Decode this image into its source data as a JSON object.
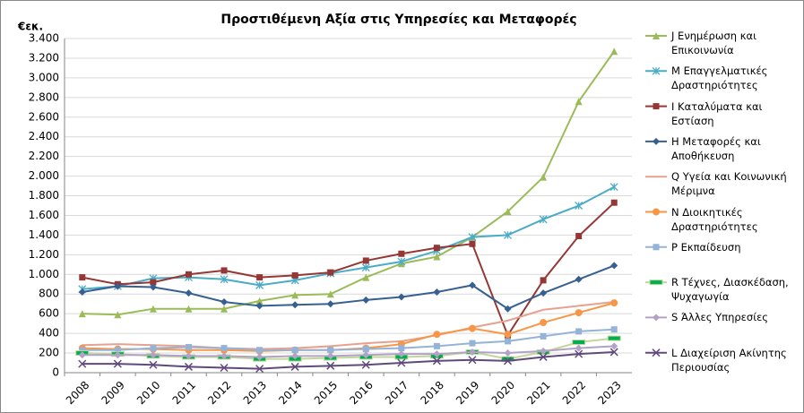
{
  "chart_data": {
    "type": "line",
    "title": "Προστιθέμενη Αξία στις Υπηρεσίες και Μεταφορές",
    "ylabel": "€εκ.",
    "categories": [
      "2008",
      "2009",
      "2010",
      "2011",
      "2012",
      "2013",
      "2014",
      "2015",
      "2016",
      "2017",
      "2018",
      "2019",
      "2020",
      "2021",
      "2022",
      "2023"
    ],
    "ylim": [
      0,
      3400
    ],
    "yticks": [
      0,
      200,
      400,
      600,
      800,
      {
        "value": 1000,
        "label": "1.000"
      },
      {
        "value": 1200,
        "label": "1.200"
      },
      {
        "value": 1400,
        "label": "1.400"
      },
      {
        "value": 1600,
        "label": "1.600"
      },
      {
        "value": 1800,
        "label": "1.800"
      },
      {
        "value": 2000,
        "label": "2.000"
      },
      {
        "value": 2200,
        "label": "2.200"
      },
      {
        "value": 2400,
        "label": "2.400"
      },
      {
        "value": 2600,
        "label": "2.600"
      },
      {
        "value": 2800,
        "label": "2.800"
      },
      {
        "value": 3000,
        "label": "3.000"
      },
      {
        "value": 3200,
        "label": "3.200"
      },
      {
        "value": 3400,
        "label": "3.400"
      }
    ],
    "grid": true,
    "legend": "right",
    "series": [
      {
        "name": "J Ενημέρωση και Επικοινωνία",
        "color": "#9BBB59",
        "marker": "triangle",
        "values": [
          600,
          590,
          650,
          650,
          650,
          730,
          790,
          800,
          970,
          1110,
          1180,
          1380,
          1640,
          1990,
          2760,
          3270
        ]
      },
      {
        "name": "M Επαγγελματικές Δραστηριότητες",
        "color": "#4BACC6",
        "marker": "asterisk",
        "values": [
          850,
          880,
          960,
          970,
          950,
          890,
          940,
          1010,
          1070,
          1130,
          1240,
          1380,
          1400,
          1560,
          1700,
          1890
        ]
      },
      {
        "name": "I Καταλύματα και Εστίαση",
        "color": "#953735",
        "marker": "square",
        "values": [
          970,
          900,
          920,
          1000,
          1040,
          970,
          990,
          1020,
          1140,
          1210,
          1270,
          1310,
          380,
          940,
          1390,
          1730
        ]
      },
      {
        "name": "H Μεταφορές και Αποθήκευση",
        "color": "#366092",
        "marker": "diamond",
        "values": [
          820,
          880,
          870,
          810,
          720,
          680,
          690,
          700,
          740,
          770,
          820,
          890,
          650,
          810,
          950,
          1090
        ]
      },
      {
        "name": "Q Υγεία και Κοινωνική Μέριμνα",
        "color": "#E6A18F",
        "marker": "none",
        "values": [
          280,
          290,
          280,
          270,
          250,
          240,
          250,
          270,
          300,
          320,
          380,
          460,
          530,
          640,
          680,
          720
        ]
      },
      {
        "name": "N Διοικητικές Δραστηριότητες",
        "color": "#F79646",
        "marker": "circle",
        "values": [
          250,
          240,
          240,
          230,
          230,
          220,
          230,
          230,
          250,
          290,
          390,
          450,
          390,
          510,
          610,
          710
        ]
      },
      {
        "name": "P Εκπαίδευση",
        "color": "#95B3D7",
        "marker": "square",
        "values": [
          230,
          230,
          250,
          260,
          250,
          230,
          230,
          230,
          240,
          250,
          270,
          300,
          320,
          370,
          420,
          440
        ]
      },
      {
        "name": "R Τέχνες, Διασκέδαση, Ψυχαγωγία",
        "color": "#C3D69B",
        "marker": "bar",
        "values": [
          200,
          190,
          170,
          160,
          160,
          140,
          140,
          150,
          160,
          160,
          170,
          210,
          140,
          210,
          310,
          350
        ]
      },
      {
        "name": "S Άλλες Υπηρεσίες",
        "color": "#B3A2C7",
        "marker": "diamond",
        "values": [
          180,
          180,
          180,
          170,
          170,
          160,
          170,
          170,
          180,
          190,
          190,
          210,
          200,
          220,
          250,
          270
        ]
      },
      {
        "name": "L Διαχείριση Ακίνητης Περιουσίας",
        "color": "#604A7B",
        "marker": "x",
        "values": [
          90,
          90,
          80,
          60,
          50,
          40,
          60,
          70,
          80,
          100,
          120,
          130,
          120,
          160,
          190,
          210
        ]
      }
    ]
  }
}
